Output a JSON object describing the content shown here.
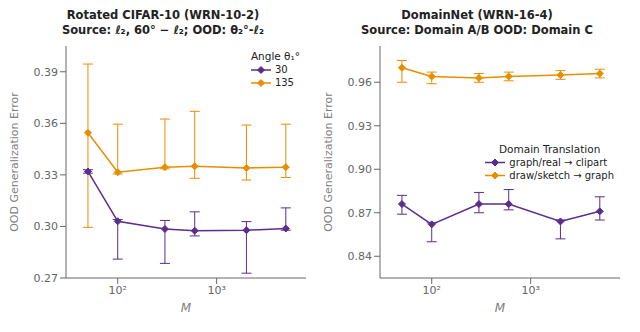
{
  "chart_data": [
    {
      "type": "line",
      "title": "Rotated CIFAR-10 (WRN-10-2)",
      "subtitle": "Source: ℓ₂, 60° − ℓ₂; OOD: θ₂°-ℓ₂",
      "x_label": "M",
      "y_label": "OOD Generalization Error",
      "legend_title": "Angle θ₁°",
      "legend": "upper right",
      "log": "x",
      "grid": false,
      "marker": "diamond",
      "xlim": [
        30,
        8000
      ],
      "xticks": [
        {
          "value": 100,
          "label": "10²"
        },
        {
          "value": 1000,
          "label": "10³"
        }
      ],
      "ylim": [
        0.27,
        0.405
      ],
      "yticks": [
        0.27,
        {
          "value": 0.3,
          "label": "0.30"
        },
        0.33,
        0.36,
        0.39
      ],
      "x": [
        50,
        100,
        300,
        600,
        2000,
        5000
      ],
      "series": [
        {
          "name": "30",
          "color": "#5b2d8e",
          "values": [
            0.332,
            0.303,
            0.2985,
            0.2975,
            0.2978,
            0.2988
          ],
          "error_low": [
            0.001,
            0.022,
            0.02,
            0.003,
            0.025,
            0.001
          ],
          "error_high": [
            0.001,
            0.001,
            0.005,
            0.011,
            0.005,
            0.012
          ]
        },
        {
          "name": "135",
          "color": "#e88e00",
          "values": [
            0.3545,
            0.3315,
            0.3345,
            0.335,
            0.334,
            0.3345
          ],
          "error_low": [
            0.055,
            0.001,
            0.001,
            0.007,
            0.007,
            0.006
          ],
          "error_high": [
            0.04,
            0.028,
            0.028,
            0.032,
            0.025,
            0.025
          ]
        }
      ]
    },
    {
      "type": "line",
      "title": "DomainNet (WRN-16-4)",
      "subtitle": "Source: Domain A/B OOD: Domain C",
      "x_label": "M",
      "y_label": "OOD Generalization Error",
      "legend_title": "Domain Translation",
      "legend": "center right",
      "log": "x",
      "grid": false,
      "marker": "diamond",
      "xlim": [
        30,
        8000
      ],
      "xticks": [
        {
          "value": 100,
          "label": "10²"
        },
        {
          "value": 1000,
          "label": "10³"
        }
      ],
      "ylim": [
        0.825,
        0.985
      ],
      "yticks": [
        0.84,
        0.87,
        {
          "value": 0.9,
          "label": "0.90"
        },
        0.93,
        0.96
      ],
      "x": [
        50,
        100,
        300,
        600,
        2000,
        5000
      ],
      "series": [
        {
          "name": "graph/real → clipart",
          "color": "#5b2d8e",
          "values": [
            0.876,
            0.862,
            0.876,
            0.876,
            0.864,
            0.871
          ],
          "error_low": [
            0.007,
            0.012,
            0.006,
            0.004,
            0.012,
            0.006
          ],
          "error_high": [
            0.006,
            0.001,
            0.008,
            0.01,
            0.001,
            0.01
          ]
        },
        {
          "name": "draw/sketch → graph",
          "color": "#e88e00",
          "values": [
            0.97,
            0.964,
            0.963,
            0.964,
            0.965,
            0.966
          ],
          "error_low": [
            0.01,
            0.005,
            0.003,
            0.003,
            0.003,
            0.003
          ],
          "error_high": [
            0.005,
            0.003,
            0.003,
            0.003,
            0.003,
            0.003
          ]
        }
      ]
    }
  ]
}
